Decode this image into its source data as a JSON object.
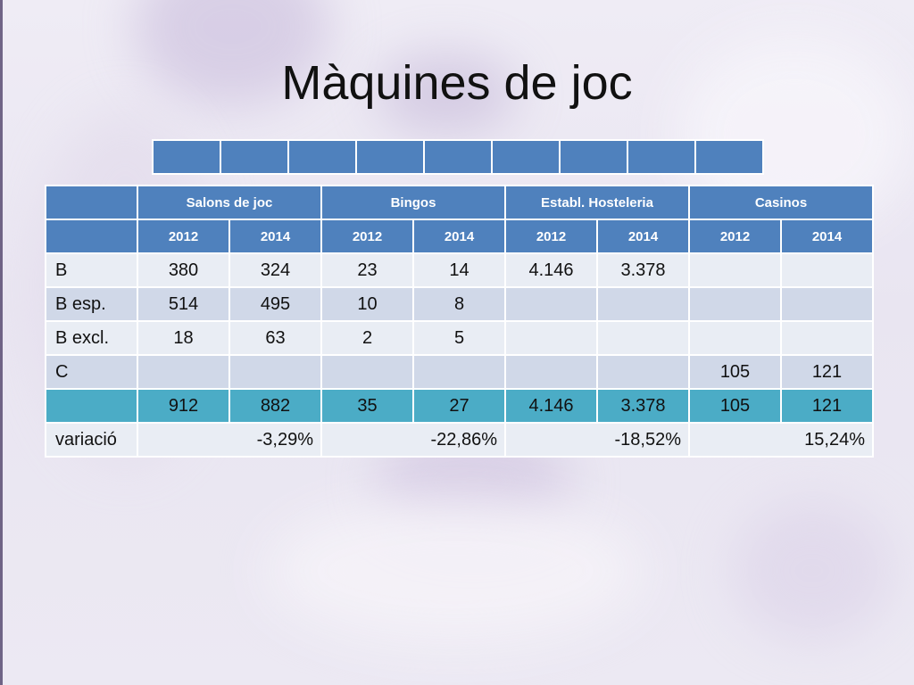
{
  "slide": {
    "title": "Màquines de joc"
  },
  "header_strip": {
    "cell_count": 9
  },
  "table": {
    "groups": [
      "Salons de joc",
      "Bingos",
      "Establ. Hosteleria",
      "Casinos"
    ],
    "years": [
      "2012",
      "2014",
      "2012",
      "2014",
      "2012",
      "2014",
      "2012",
      "2014"
    ],
    "rows": [
      {
        "label": "B",
        "values": [
          "380",
          "324",
          "23",
          "14",
          "4.146",
          "3.378",
          "",
          ""
        ]
      },
      {
        "label": "B esp.",
        "values": [
          "514",
          "495",
          "10",
          "8",
          "",
          "",
          "",
          ""
        ]
      },
      {
        "label": "B excl.",
        "values": [
          "18",
          "63",
          "2",
          "5",
          "",
          "",
          "",
          ""
        ]
      },
      {
        "label": "C",
        "values": [
          "",
          "",
          "",
          "",
          "",
          "",
          "105",
          "121"
        ]
      },
      {
        "label": "",
        "values": [
          "912",
          "882",
          "35",
          "27",
          "4.146",
          "3.378",
          "105",
          "121"
        ]
      }
    ],
    "variation": {
      "label": "variació",
      "values": [
        "-3,29%",
        "-22,86%",
        "-18,52%",
        "15,24%"
      ]
    }
  },
  "colors": {
    "header": "#4f81bd",
    "row_light": "#e9edf4",
    "row_dark": "#d0d8e8",
    "total": "#4bacc6"
  }
}
